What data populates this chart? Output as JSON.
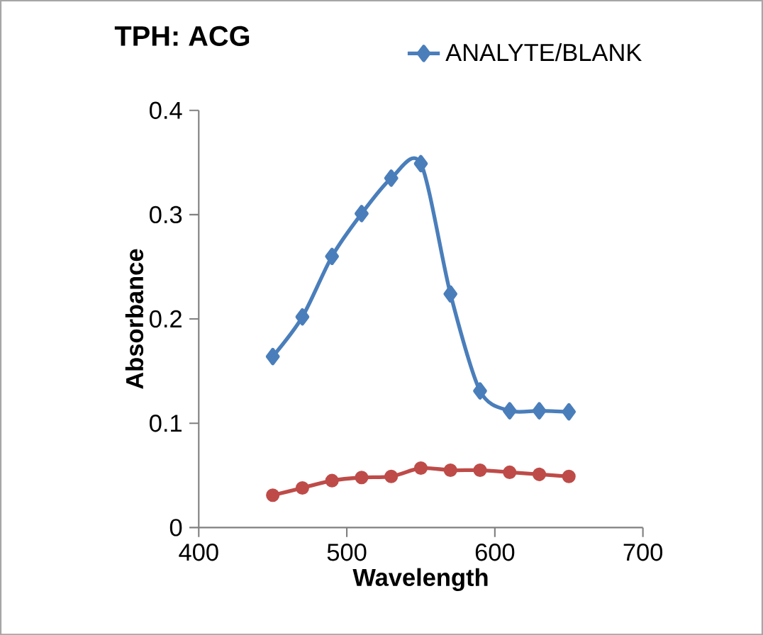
{
  "chart_data": {
    "type": "line",
    "title": "TPH: ACG",
    "xlabel": "Wavelength",
    "ylabel": "Absorbance",
    "xlim": [
      400,
      700
    ],
    "xticks": [
      400,
      500,
      600,
      700
    ],
    "ylim": [
      0,
      0.4
    ],
    "yticks": [
      0,
      0.1,
      0.2,
      0.3,
      0.4
    ],
    "grid": false,
    "legend": "top right",
    "series": [
      {
        "name": "ANALYTE/BLANK",
        "color": "#4a7ebb",
        "marker": "diamond",
        "x": [
          450,
          470,
          490,
          510,
          530,
          550,
          570,
          590,
          610,
          630,
          650
        ],
        "values": [
          0.164,
          0.202,
          0.26,
          0.301,
          0.335,
          0.349,
          0.224,
          0.131,
          0.112,
          0.112,
          0.111
        ]
      },
      {
        "color": "#be4b48",
        "marker": "circle",
        "x": [
          450,
          470,
          490,
          510,
          530,
          550,
          570,
          590,
          610,
          630,
          650
        ],
        "values": [
          0.031,
          0.038,
          0.045,
          0.048,
          0.049,
          0.057,
          0.055,
          0.055,
          0.053,
          0.051,
          0.049
        ]
      }
    ]
  }
}
